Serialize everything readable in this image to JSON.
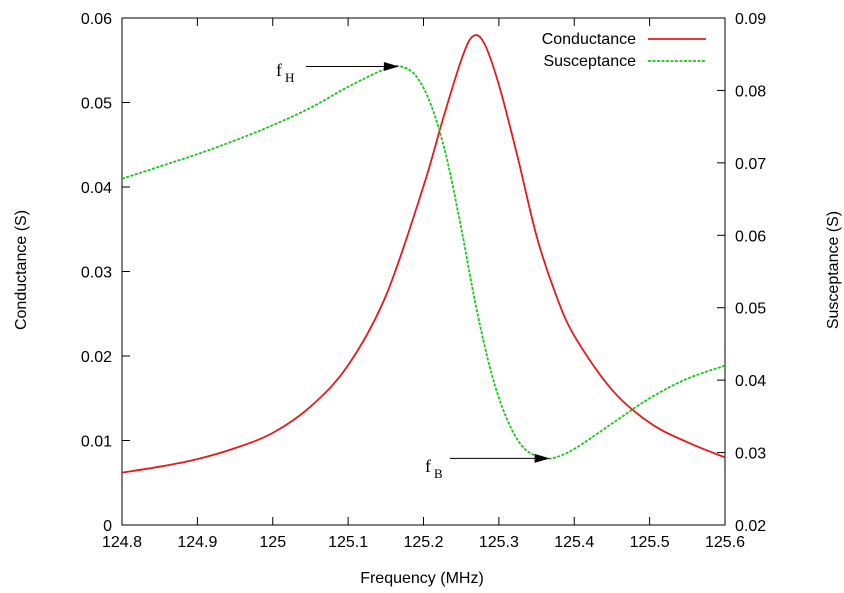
{
  "chart_data": {
    "type": "line",
    "xlabel": "Frequency (MHz)",
    "ylabel": "Conductance (S)",
    "y2label": "Susceptance (S)",
    "xlim": [
      124.8,
      125.6
    ],
    "ylim": [
      0,
      0.06
    ],
    "y2lim": [
      0.02,
      0.09
    ],
    "grid": false,
    "legend_position": "top-right",
    "x_ticks": [
      124.8,
      124.9,
      125,
      125.1,
      125.2,
      125.3,
      125.4,
      125.5,
      125.6
    ],
    "x_tick_labels": [
      "124.8",
      "124.9",
      "125",
      "125.1",
      "125.2",
      "125.3",
      "125.4",
      "125.5",
      "125.6"
    ],
    "y_ticks": [
      0,
      0.01,
      0.02,
      0.03,
      0.04,
      0.05,
      0.06
    ],
    "y_tick_labels": [
      "0",
      "0.01",
      "0.02",
      "0.03",
      "0.04",
      "0.05",
      "0.06"
    ],
    "y2_ticks": [
      0.02,
      0.03,
      0.04,
      0.05,
      0.06,
      0.07,
      0.08,
      0.09
    ],
    "y2_tick_labels": [
      "0.02",
      "0.03",
      "0.04",
      "0.05",
      "0.06",
      "0.07",
      "0.08",
      "0.09"
    ],
    "series": [
      {
        "name": "Conductance",
        "axis": "left",
        "color": "#e41a1c",
        "dash": "solid",
        "x": [
          124.8,
          124.85,
          124.9,
          124.95,
          125.0,
          125.05,
          125.1,
          125.15,
          125.2,
          125.225,
          125.25,
          125.265,
          125.28,
          125.3,
          125.325,
          125.35,
          125.375,
          125.4,
          125.45,
          125.5,
          125.55,
          125.6
        ],
        "y": [
          0.0062,
          0.0069,
          0.0078,
          0.0091,
          0.0109,
          0.014,
          0.0189,
          0.0271,
          0.0401,
          0.0478,
          0.055,
          0.0578,
          0.0571,
          0.0521,
          0.0435,
          0.0342,
          0.0274,
          0.0224,
          0.016,
          0.0121,
          0.0098,
          0.008
        ]
      },
      {
        "name": "Susceptance",
        "axis": "right",
        "color": "#1ac51a",
        "dash": "dashed",
        "x": [
          124.8,
          124.85,
          124.9,
          124.95,
          125.0,
          125.05,
          125.1,
          125.15,
          125.17,
          125.19,
          125.21,
          125.23,
          125.25,
          125.27,
          125.29,
          125.31,
          125.33,
          125.35,
          125.37,
          125.4,
          125.45,
          125.5,
          125.55,
          125.6
        ],
        "y": [
          0.0678,
          0.0695,
          0.0712,
          0.0731,
          0.0752,
          0.0776,
          0.0805,
          0.083,
          0.0833,
          0.082,
          0.078,
          0.071,
          0.061,
          0.05,
          0.041,
          0.0348,
          0.031,
          0.0295,
          0.0292,
          0.0305,
          0.034,
          0.0375,
          0.0402,
          0.042
        ]
      }
    ],
    "annotations": [
      {
        "label": "f",
        "subscript": "H",
        "point_x": 125.17,
        "point_y2": 0.0833
      },
      {
        "label": "f",
        "subscript": "B",
        "point_x": 125.37,
        "point_y2": 0.0292
      }
    ]
  }
}
